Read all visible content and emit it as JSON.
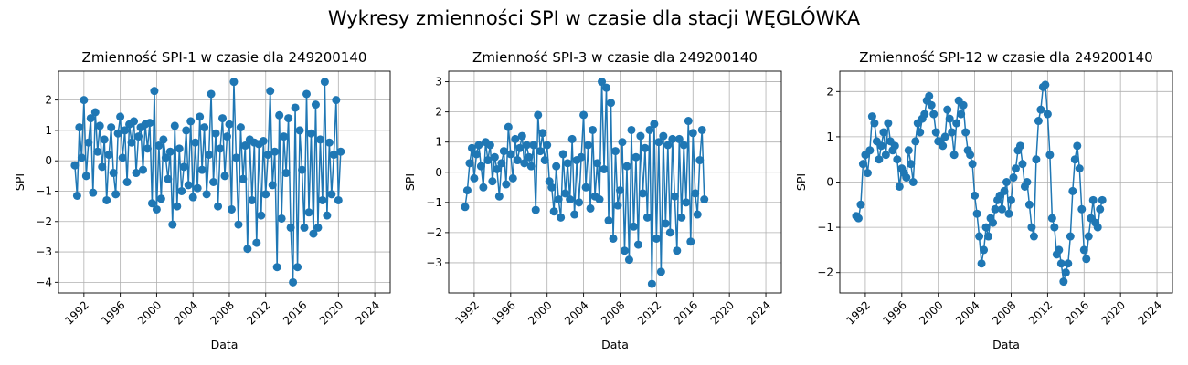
{
  "suptitle": "Wykresy zmienności SPI w czasie dla stacji WĘGLÓWKA",
  "colors": {
    "series": "#1f77b4",
    "grid": "#b0b0b0",
    "axis": "#000000"
  },
  "chart_data": [
    {
      "type": "line",
      "title": "Zmienność SPI-1 w czasie dla 249200140",
      "xlabel": "Data",
      "ylabel": "SPI",
      "xlim": [
        1989.2,
        2025.7
      ],
      "ylim": [
        -4.35,
        2.95
      ],
      "xticks": [
        1992,
        1996,
        2000,
        2004,
        2008,
        2012,
        2016,
        2020,
        2024
      ],
      "yticks": [
        -4,
        -3,
        -2,
        -1,
        0,
        1,
        2
      ],
      "grid": true,
      "marker": "circle",
      "x_start": 1991.0,
      "x_step": 0.25,
      "y": [
        -0.15,
        -1.15,
        1.1,
        0.1,
        2.0,
        -0.5,
        0.6,
        1.4,
        -1.05,
        1.6,
        0.3,
        1.15,
        -0.2,
        0.7,
        -1.3,
        0.2,
        1.1,
        -0.4,
        -1.1,
        0.9,
        1.45,
        0.1,
        1.0,
        -0.7,
        1.2,
        0.6,
        1.3,
        -0.4,
        0.8,
        1.1,
        -0.3,
        1.2,
        0.4,
        1.25,
        -1.4,
        2.3,
        -1.6,
        0.5,
        -1.25,
        0.7,
        0.1,
        -0.6,
        0.3,
        -2.1,
        1.15,
        -1.5,
        0.4,
        -1.0,
        -0.2,
        1.0,
        -0.8,
        1.3,
        -1.2,
        0.6,
        -0.9,
        1.45,
        -0.3,
        1.1,
        -1.1,
        0.2,
        2.2,
        -0.7,
        0.9,
        -1.5,
        0.4,
        1.4,
        -0.5,
        0.8,
        1.2,
        -1.6,
        2.6,
        0.1,
        -2.1,
        1.1,
        -0.6,
        0.5,
        -2.9,
        0.7,
        -1.3,
        0.6,
        -2.7,
        0.55,
        -1.8,
        0.65,
        -1.1,
        0.2,
        2.3,
        -0.8,
        0.3,
        -3.5,
        1.5,
        -1.9,
        0.8,
        -0.4,
        1.4,
        -2.2,
        -4.0,
        1.75,
        -3.5,
        1.0,
        -0.3,
        -2.2,
        2.2,
        -1.7,
        0.9,
        -2.4,
        1.85,
        -2.2,
        0.7,
        -1.3,
        2.6,
        -1.8,
        0.6,
        -1.1,
        0.2,
        2.0,
        -1.3,
        0.3
      ]
    },
    {
      "type": "line",
      "title": "Zmienność SPI-3 w czasie dla 249200140",
      "xlabel": "Data",
      "ylabel": "SPI",
      "xlim": [
        1989.2,
        2025.7
      ],
      "ylim": [
        -4.0,
        3.35
      ],
      "xticks": [
        1992,
        1996,
        2000,
        2004,
        2008,
        2012,
        2016,
        2020,
        2024
      ],
      "yticks": [
        -3,
        -2,
        -1,
        0,
        1,
        2,
        3
      ],
      "grid": true,
      "marker": "circle",
      "x_start": 1991.0,
      "x_step": 0.25,
      "y": [
        -1.15,
        -0.6,
        0.3,
        0.8,
        -0.2,
        0.6,
        0.9,
        0.2,
        -0.5,
        1.0,
        0.4,
        0.9,
        -0.3,
        0.5,
        0.1,
        -0.8,
        0.3,
        0.7,
        -0.4,
        1.5,
        0.6,
        -0.2,
        1.1,
        0.4,
        0.8,
        1.2,
        0.3,
        0.9,
        0.5,
        0.2,
        0.9,
        -1.25,
        1.9,
        0.7,
        1.3,
        0.4,
        0.9,
        -0.3,
        -0.5,
        -1.3,
        0.2,
        -0.9,
        -1.5,
        0.6,
        -0.7,
        0.3,
        -0.9,
        1.1,
        -1.4,
        0.4,
        -1.0,
        0.5,
        1.9,
        -0.5,
        0.9,
        -1.2,
        1.4,
        -0.8,
        0.3,
        -0.9,
        3.0,
        0.1,
        2.8,
        -1.6,
        2.3,
        -2.2,
        0.7,
        -1.1,
        -0.6,
        1.0,
        -2.6,
        0.2,
        -2.9,
        1.4,
        -1.8,
        0.5,
        -2.4,
        1.2,
        -0.7,
        0.8,
        -1.5,
        1.4,
        -3.7,
        1.6,
        -2.2,
        1.0,
        -3.3,
        1.2,
        -1.7,
        0.9,
        -2.0,
        1.1,
        -0.8,
        -2.6,
        1.1,
        -1.5,
        0.9,
        -1.0,
        1.7,
        -2.3,
        1.3,
        -0.7,
        -1.4,
        0.4,
        1.4,
        -0.9
      ]
    },
    {
      "type": "line",
      "title": "Zmienność SPI-12 w czasie dla 249200140",
      "xlabel": "Data",
      "ylabel": "SPI",
      "xlim": [
        1989.2,
        2025.7
      ],
      "ylim": [
        -2.45,
        2.45
      ],
      "xticks": [
        1992,
        1996,
        2000,
        2004,
        2008,
        2012,
        2016,
        2020,
        2024
      ],
      "yticks": [
        -2,
        -1,
        0,
        1,
        2
      ],
      "grid": true,
      "marker": "circle",
      "x_start": 1991.0,
      "x_step": 0.25,
      "y": [
        -0.75,
        -0.8,
        -0.5,
        0.4,
        0.6,
        0.2,
        0.7,
        1.45,
        1.3,
        0.9,
        0.5,
        0.8,
        1.1,
        0.6,
        1.3,
        0.9,
        0.7,
        0.8,
        0.5,
        -0.1,
        0.3,
        0.2,
        0.1,
        0.7,
        0.4,
        0.0,
        0.9,
        1.3,
        1.1,
        1.4,
        1.5,
        1.8,
        1.9,
        1.7,
        1.5,
        1.1,
        0.9,
        0.9,
        0.8,
        1.0,
        1.6,
        1.4,
        1.1,
        0.6,
        1.3,
        1.8,
        1.5,
        1.7,
        1.1,
        0.7,
        0.6,
        0.4,
        -0.3,
        -0.7,
        -1.2,
        -1.8,
        -1.5,
        -1.0,
        -1.2,
        -0.8,
        -0.9,
        -0.6,
        -0.4,
        -0.3,
        -0.6,
        -0.2,
        0.0,
        -0.7,
        -0.4,
        0.1,
        0.3,
        0.7,
        0.8,
        0.4,
        -0.1,
        0.0,
        -0.5,
        -1.0,
        -1.2,
        0.5,
        1.35,
        1.6,
        2.1,
        2.15,
        1.5,
        0.6,
        -0.8,
        -1.0,
        -1.6,
        -1.5,
        -1.8,
        -2.2,
        -2.0,
        -1.8,
        -1.2,
        -0.2,
        0.5,
        0.8,
        0.3,
        -0.6,
        -1.5,
        -1.7,
        -1.2,
        -0.8,
        -0.4,
        -0.9,
        -1.0,
        -0.6,
        -0.4
      ]
    }
  ]
}
